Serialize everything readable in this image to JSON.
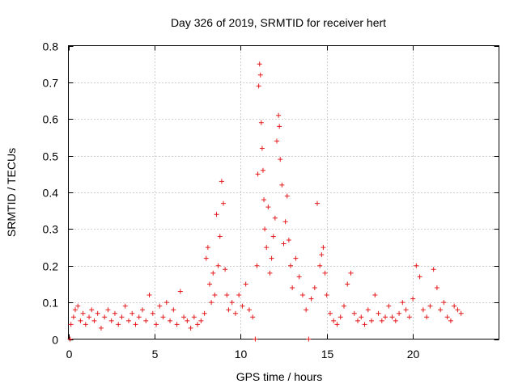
{
  "chart_data": {
    "type": "scatter",
    "title": "Day 326 of 2019, SRMTID for receiver hert",
    "xlabel": "GPS time / hours",
    "ylabel": "SRMTID / TECUs",
    "xlim": [
      0,
      25
    ],
    "ylim": [
      0,
      0.8
    ],
    "x_ticks": [
      0,
      5,
      10,
      15,
      20
    ],
    "y_ticks": [
      0,
      0.1,
      0.2,
      0.3,
      0.4,
      0.5,
      0.6,
      0.7,
      0.8
    ],
    "x_tick_labels": [
      "0",
      "5",
      "10",
      "15",
      "20"
    ],
    "y_tick_labels": [
      "0",
      "0.1",
      "0.2",
      "0.3",
      "0.4",
      "0.5",
      "0.6",
      "0.7",
      "0.8"
    ],
    "grid": true,
    "marker": "+",
    "colors": {
      "marker": "#e41a1c",
      "frame": "#000000",
      "grid": "#a0a0a0"
    },
    "series": [
      {
        "name": "SRMTID",
        "points": [
          [
            0.1,
            0.0
          ],
          [
            0.15,
            0.04
          ],
          [
            0.3,
            0.06
          ],
          [
            0.4,
            0.08
          ],
          [
            0.55,
            0.09
          ],
          [
            0.7,
            0.05
          ],
          [
            0.85,
            0.07
          ],
          [
            1.0,
            0.04
          ],
          [
            1.2,
            0.06
          ],
          [
            1.35,
            0.08
          ],
          [
            1.5,
            0.05
          ],
          [
            1.7,
            0.07
          ],
          [
            1.9,
            0.03
          ],
          [
            2.1,
            0.06
          ],
          [
            2.3,
            0.08
          ],
          [
            2.5,
            0.05
          ],
          [
            2.7,
            0.07
          ],
          [
            2.9,
            0.04
          ],
          [
            3.1,
            0.06
          ],
          [
            3.3,
            0.09
          ],
          [
            3.5,
            0.05
          ],
          [
            3.7,
            0.07
          ],
          [
            3.9,
            0.04
          ],
          [
            4.1,
            0.06
          ],
          [
            4.3,
            0.08
          ],
          [
            4.5,
            0.05
          ],
          [
            4.7,
            0.12
          ],
          [
            4.9,
            0.07
          ],
          [
            5.1,
            0.04
          ],
          [
            5.3,
            0.09
          ],
          [
            5.5,
            0.06
          ],
          [
            5.7,
            0.1
          ],
          [
            5.9,
            0.05
          ],
          [
            6.1,
            0.08
          ],
          [
            6.3,
            0.04
          ],
          [
            6.5,
            0.13
          ],
          [
            6.7,
            0.06
          ],
          [
            6.9,
            0.05
          ],
          [
            7.1,
            0.03
          ],
          [
            7.3,
            0.06
          ],
          [
            7.5,
            0.04
          ],
          [
            7.7,
            0.05
          ],
          [
            7.9,
            0.07
          ],
          [
            8.0,
            0.22
          ],
          [
            8.1,
            0.25
          ],
          [
            8.2,
            0.15
          ],
          [
            8.3,
            0.1
          ],
          [
            8.4,
            0.18
          ],
          [
            8.5,
            0.12
          ],
          [
            8.6,
            0.34
          ],
          [
            8.7,
            0.2
          ],
          [
            8.8,
            0.28
          ],
          [
            8.9,
            0.43
          ],
          [
            9.0,
            0.37
          ],
          [
            9.1,
            0.19
          ],
          [
            9.2,
            0.12
          ],
          [
            9.3,
            0.08
          ],
          [
            9.5,
            0.1
          ],
          [
            9.7,
            0.07
          ],
          [
            9.9,
            0.12
          ],
          [
            10.1,
            0.09
          ],
          [
            10.3,
            0.15
          ],
          [
            10.5,
            0.08
          ],
          [
            10.7,
            0.06
          ],
          [
            10.85,
            0.0
          ],
          [
            10.95,
            0.2
          ],
          [
            11.0,
            0.45
          ],
          [
            11.05,
            0.69
          ],
          [
            11.1,
            0.75
          ],
          [
            11.15,
            0.72
          ],
          [
            11.2,
            0.59
          ],
          [
            11.25,
            0.52
          ],
          [
            11.3,
            0.46
          ],
          [
            11.35,
            0.38
          ],
          [
            11.4,
            0.3
          ],
          [
            11.5,
            0.25
          ],
          [
            11.6,
            0.36
          ],
          [
            11.7,
            0.18
          ],
          [
            11.8,
            0.22
          ],
          [
            11.9,
            0.28
          ],
          [
            12.0,
            0.33
          ],
          [
            12.1,
            0.54
          ],
          [
            12.2,
            0.61
          ],
          [
            12.25,
            0.58
          ],
          [
            12.3,
            0.49
          ],
          [
            12.4,
            0.42
          ],
          [
            12.5,
            0.26
          ],
          [
            12.6,
            0.32
          ],
          [
            12.7,
            0.39
          ],
          [
            12.8,
            0.27
          ],
          [
            12.9,
            0.2
          ],
          [
            13.0,
            0.14
          ],
          [
            13.2,
            0.22
          ],
          [
            13.4,
            0.17
          ],
          [
            13.6,
            0.12
          ],
          [
            13.8,
            0.08
          ],
          [
            13.95,
            0.0
          ],
          [
            14.1,
            0.11
          ],
          [
            14.3,
            0.14
          ],
          [
            14.45,
            0.37
          ],
          [
            14.6,
            0.2
          ],
          [
            14.7,
            0.23
          ],
          [
            14.8,
            0.25
          ],
          [
            14.9,
            0.18
          ],
          [
            15.0,
            0.12
          ],
          [
            15.2,
            0.07
          ],
          [
            15.4,
            0.05
          ],
          [
            15.6,
            0.04
          ],
          [
            15.8,
            0.06
          ],
          [
            16.0,
            0.09
          ],
          [
            16.2,
            0.15
          ],
          [
            16.4,
            0.18
          ],
          [
            16.6,
            0.07
          ],
          [
            16.8,
            0.05
          ],
          [
            17.0,
            0.06
          ],
          [
            17.2,
            0.04
          ],
          [
            17.4,
            0.08
          ],
          [
            17.6,
            0.05
          ],
          [
            17.8,
            0.12
          ],
          [
            18.0,
            0.07
          ],
          [
            18.2,
            0.05
          ],
          [
            18.4,
            0.06
          ],
          [
            18.6,
            0.09
          ],
          [
            18.8,
            0.06
          ],
          [
            19.0,
            0.05
          ],
          [
            19.2,
            0.07
          ],
          [
            19.4,
            0.1
          ],
          [
            19.6,
            0.08
          ],
          [
            19.8,
            0.06
          ],
          [
            20.0,
            0.11
          ],
          [
            20.2,
            0.2
          ],
          [
            20.4,
            0.17
          ],
          [
            20.6,
            0.08
          ],
          [
            20.8,
            0.06
          ],
          [
            21.0,
            0.09
          ],
          [
            21.2,
            0.19
          ],
          [
            21.4,
            0.14
          ],
          [
            21.6,
            0.08
          ],
          [
            21.8,
            0.1
          ],
          [
            22.0,
            0.06
          ],
          [
            22.2,
            0.05
          ],
          [
            22.4,
            0.09
          ],
          [
            22.6,
            0.08
          ],
          [
            22.8,
            0.07
          ]
        ]
      }
    ]
  }
}
